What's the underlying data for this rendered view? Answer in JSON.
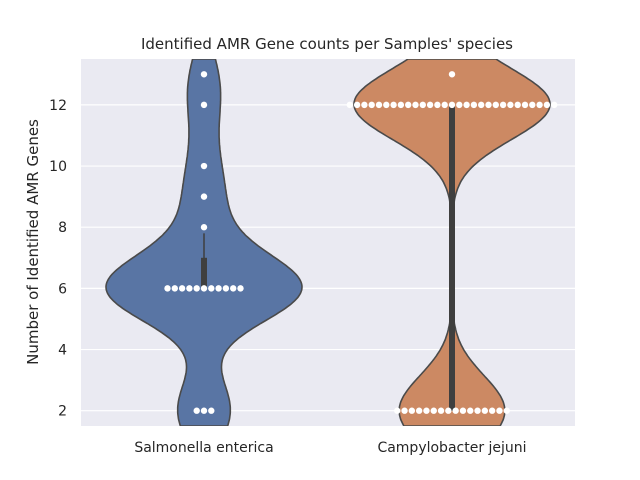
{
  "chart_data": {
    "type": "violin+swarm",
    "title": "Identified AMR Gene counts per Samples' species",
    "xlabel": "",
    "ylabel": "Number of Identified AMR Genes",
    "ylim": [
      1.5,
      13.5
    ],
    "yticks": [
      2,
      4,
      6,
      8,
      10,
      12
    ],
    "grid": true,
    "categories": [
      "Salmonella enterica",
      "Campylobacter jejuni"
    ],
    "colors": [
      "#5975a4",
      "#cc8963"
    ],
    "background": "#eaeaf2",
    "swarm_color": "#ffffff",
    "series": [
      {
        "category": "Salmonella enterica",
        "points": [
          {
            "y": 2,
            "count": 3
          },
          {
            "y": 6,
            "count": 11
          },
          {
            "y": 8,
            "count": 1
          },
          {
            "y": 9,
            "count": 1
          },
          {
            "y": 10,
            "count": 1
          },
          {
            "y": 12,
            "count": 1
          },
          {
            "y": 13,
            "count": 1
          }
        ],
        "box": {
          "q1": 6,
          "q3": 7,
          "whisker_low": 6,
          "whisker_high": 7.8
        }
      },
      {
        "category": "Campylobacter jejuni",
        "points": [
          {
            "y": 2,
            "count": 16
          },
          {
            "y": 12,
            "count": 29
          },
          {
            "y": 13,
            "count": 1
          }
        ],
        "box": {
          "q1": 2,
          "q3": 12,
          "whisker_low": 2,
          "whisker_high": 12
        }
      }
    ]
  }
}
